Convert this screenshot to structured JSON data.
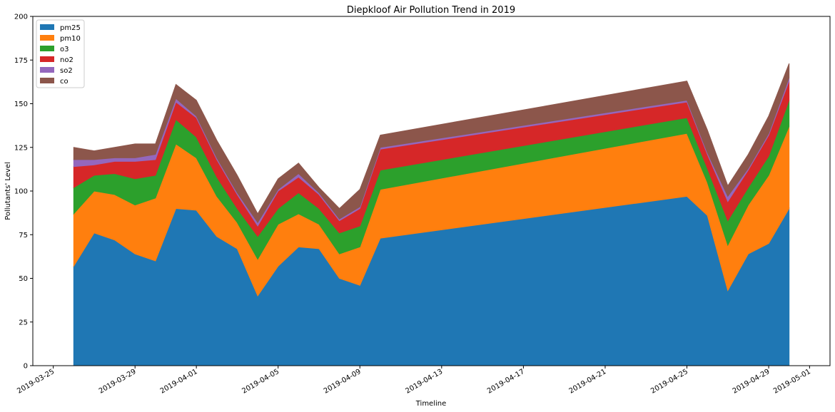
{
  "chart_data": {
    "type": "area",
    "stacked": true,
    "title": "Diepkloof Air Pollution Trend in 2019",
    "xlabel": "Timeline",
    "ylabel": "Pollutants' Level",
    "xlim": [
      "2019-03-24",
      "2019-05-02"
    ],
    "ylim": [
      0,
      200
    ],
    "yticks": [
      0,
      25,
      50,
      75,
      100,
      125,
      150,
      175,
      200
    ],
    "xticks": [
      "2019-03-25",
      "2019-03-29",
      "2019-04-01",
      "2019-04-05",
      "2019-04-09",
      "2019-04-13",
      "2019-04-17",
      "2019-04-21",
      "2019-04-25",
      "2019-04-29",
      "2019-05-01"
    ],
    "grid": false,
    "legend": "top-left",
    "x": [
      "2019-03-26",
      "2019-03-27",
      "2019-03-28",
      "2019-03-29",
      "2019-03-30",
      "2019-03-31",
      "2019-04-01",
      "2019-04-02",
      "2019-04-03",
      "2019-04-04",
      "2019-04-05",
      "2019-04-06",
      "2019-04-07",
      "2019-04-08",
      "2019-04-09",
      "2019-04-10",
      "2019-04-25",
      "2019-04-26",
      "2019-04-27",
      "2019-04-28",
      "2019-04-29",
      "2019-04-30"
    ],
    "series": [
      {
        "name": "pm25",
        "color": "#1f77b4",
        "values": [
          57,
          76,
          72,
          64,
          60,
          90,
          89,
          74,
          67,
          40,
          57,
          68,
          67,
          50,
          46,
          73,
          97,
          86,
          43,
          64,
          70,
          90
        ]
      },
      {
        "name": "pm10",
        "color": "#ff7f0e",
        "values": [
          30,
          24,
          26,
          28,
          36,
          37,
          30,
          23,
          15,
          21,
          24,
          19,
          14,
          14,
          22,
          28,
          36,
          19,
          26,
          28,
          39,
          47
        ]
      },
      {
        "name": "o3",
        "color": "#2ca02c",
        "values": [
          15,
          9,
          12,
          15,
          13,
          14,
          12,
          11,
          8,
          13,
          9,
          12,
          9,
          12,
          12,
          11,
          9,
          8,
          14,
          10,
          11,
          15
        ]
      },
      {
        "name": "no2",
        "color": "#d62728",
        "values": [
          12,
          6,
          7,
          10,
          9,
          10,
          11,
          10,
          8,
          6,
          10,
          9,
          8,
          7,
          10,
          12,
          9,
          8,
          11,
          10,
          12,
          11
        ]
      },
      {
        "name": "so2",
        "color": "#9467bd",
        "values": [
          4,
          3,
          2,
          2,
          3,
          2,
          1,
          1,
          1,
          2,
          1,
          2,
          1,
          1,
          1,
          1,
          1,
          1,
          3,
          1,
          1,
          2
        ]
      },
      {
        "name": "co",
        "color": "#8c564b",
        "values": [
          7,
          5,
          6,
          8,
          6,
          8,
          9,
          10,
          10,
          5,
          6,
          6,
          3,
          6,
          10,
          7,
          11,
          13,
          6,
          8,
          10,
          8
        ]
      }
    ]
  }
}
